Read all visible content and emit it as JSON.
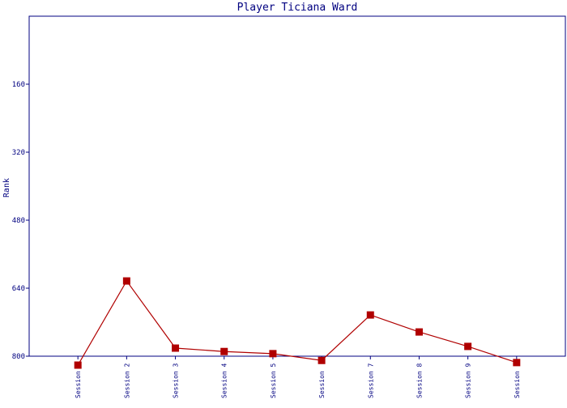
{
  "chart_data": {
    "type": "line",
    "title": "Player Ticiana Ward",
    "y_label": "Rank",
    "categories": [
      "Session",
      "Session 2",
      "Session 3",
      "Session 4",
      "Session 5",
      "Session",
      "Session 7",
      "Session 8",
      "Session 9",
      "Session"
    ],
    "series": [
      {
        "name": "Rank",
        "color": "#b00000",
        "values": [
          821,
          623,
          781,
          789,
          794,
          810,
          703,
          743,
          777,
          815
        ]
      }
    ],
    "ylim": [
      800,
      0
    ],
    "yticks": [
      160,
      320,
      480,
      640,
      800
    ],
    "grid": false
  }
}
